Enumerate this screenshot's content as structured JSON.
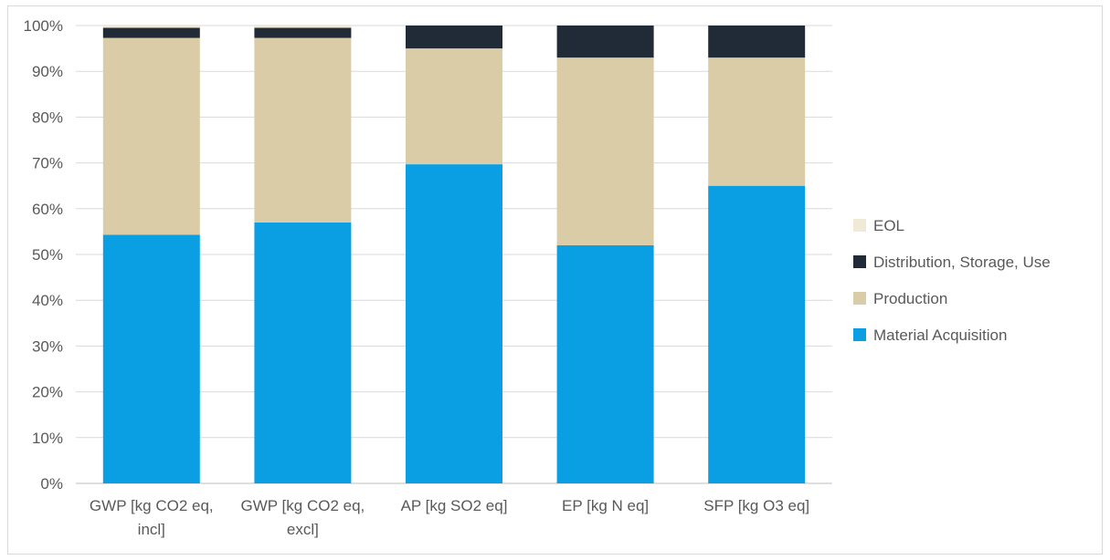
{
  "chart_data": {
    "type": "bar",
    "stacked": true,
    "title": "",
    "xlabel": "",
    "ylabel": "",
    "ylim": [
      0,
      100
    ],
    "y_ticks": [
      "0%",
      "10%",
      "20%",
      "30%",
      "40%",
      "50%",
      "60%",
      "70%",
      "80%",
      "90%",
      "100%"
    ],
    "grid": true,
    "legend_position": "right",
    "categories": [
      [
        "GWP [kg CO2 eq,",
        "incl]"
      ],
      [
        "GWP [kg CO2 eq,",
        "excl]"
      ],
      [
        "AP [kg SO2 eq]"
      ],
      [
        "EP [kg N eq]"
      ],
      [
        "SFP [kg O3 eq]"
      ]
    ],
    "series": [
      {
        "name": "Material Acquisition",
        "color": "#0a9fe3",
        "values": [
          54.3,
          57,
          69.7,
          52,
          65
        ]
      },
      {
        "name": "Production",
        "color": "#d9cca6",
        "values": [
          43,
          40.3,
          25.3,
          41,
          28
        ]
      },
      {
        "name": "Distribution, Storage, Use",
        "color": "#212b38",
        "values": [
          2.2,
          2.2,
          5,
          7,
          7
        ]
      },
      {
        "name": "EOL",
        "color": "#f0e9d6",
        "values": [
          0.5,
          0.5,
          0,
          0,
          0
        ]
      }
    ],
    "legend_order": [
      "EOL",
      "Distribution, Storage, Use",
      "Production",
      "Material Acquisition"
    ]
  }
}
